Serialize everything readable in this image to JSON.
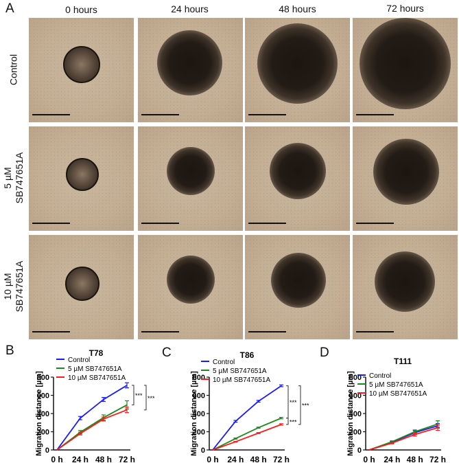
{
  "figure": {
    "panel_labels": {
      "A": "A",
      "B": "B",
      "C": "C",
      "D": "D"
    },
    "timepoints": [
      "0 hours",
      "24 hours",
      "48 hours",
      "72 hours"
    ],
    "conditions": [
      "Control",
      "5 µM SB747651A",
      "10 µM SB747651A"
    ],
    "row_labels": [
      {
        "line1": "Control",
        "line2": ""
      },
      {
        "line1": "5 µM",
        "line2": "SB747651A"
      },
      {
        "line1": "10 µM",
        "line2": "SB747651A"
      }
    ]
  },
  "chart_data": [
    {
      "type": "line",
      "title": "T78",
      "panel": "B",
      "xlabel": "",
      "ylabel": "Migration distance [µm]",
      "categories": [
        "0 h",
        "24 h",
        "48 h",
        "72 h"
      ],
      "ylim": [
        0,
        800
      ],
      "yticks": [
        0,
        200,
        400,
        600,
        800
      ],
      "series": [
        {
          "name": "Control",
          "color": "#1a1aff",
          "values": [
            0,
            350,
            555,
            710
          ],
          "errors": [
            0,
            18,
            22,
            28
          ]
        },
        {
          "name": "5 µM SB747651A",
          "color": "#1a8a1a",
          "values": [
            0,
            195,
            355,
            495
          ],
          "errors": [
            0,
            18,
            30,
            45
          ]
        },
        {
          "name": "10 µM SB747651A",
          "color": "#ff1a1a",
          "values": [
            0,
            180,
            340,
            440
          ],
          "errors": [
            0,
            15,
            22,
            30
          ]
        }
      ],
      "annotations": [
        "***",
        "***"
      ],
      "legend_position": "top-left"
    },
    {
      "type": "line",
      "title": "T86",
      "panel": "C",
      "xlabel": "",
      "ylabel": "Migration distance [µm]",
      "categories": [
        "0 h",
        "24 h",
        "48 h",
        "72 h"
      ],
      "ylim": [
        0,
        800
      ],
      "yticks": [
        0,
        200,
        400,
        600,
        800
      ],
      "series": [
        {
          "name": "Control",
          "color": "#1a1aff",
          "values": [
            0,
            315,
            535,
            705
          ],
          "errors": [
            0,
            10,
            10,
            10
          ]
        },
        {
          "name": "5 µM SB747651A",
          "color": "#1a8a1a",
          "values": [
            0,
            125,
            245,
            350
          ],
          "errors": [
            0,
            6,
            6,
            8
          ]
        },
        {
          "name": "10 µM SB747651A",
          "color": "#ff1a1a",
          "values": [
            0,
            90,
            185,
            280
          ],
          "errors": [
            0,
            5,
            6,
            8
          ]
        }
      ],
      "annotations": [
        "***",
        "***",
        "***"
      ],
      "legend_position": "top-left"
    },
    {
      "type": "line",
      "title": "T111",
      "panel": "D",
      "xlabel": "",
      "ylabel": "Migration distance [µm]",
      "categories": [
        "0 h",
        "24 h",
        "48 h",
        "72 h"
      ],
      "ylim": [
        0,
        800
      ],
      "yticks": [
        0,
        200,
        400,
        600,
        800
      ],
      "series": [
        {
          "name": "Control",
          "color": "#1a1aff",
          "values": [
            0,
            85,
            190,
            265
          ],
          "errors": [
            0,
            10,
            20,
            25
          ]
        },
        {
          "name": "5 µM SB747651A",
          "color": "#1a8a1a",
          "values": [
            0,
            90,
            200,
            285
          ],
          "errors": [
            0,
            10,
            20,
            35
          ]
        },
        {
          "name": "10 µM SB747651A",
          "color": "#ff1a1a",
          "values": [
            0,
            75,
            170,
            245
          ],
          "errors": [
            0,
            8,
            18,
            30
          ]
        }
      ],
      "annotations": [],
      "legend_position": "top-left"
    }
  ]
}
